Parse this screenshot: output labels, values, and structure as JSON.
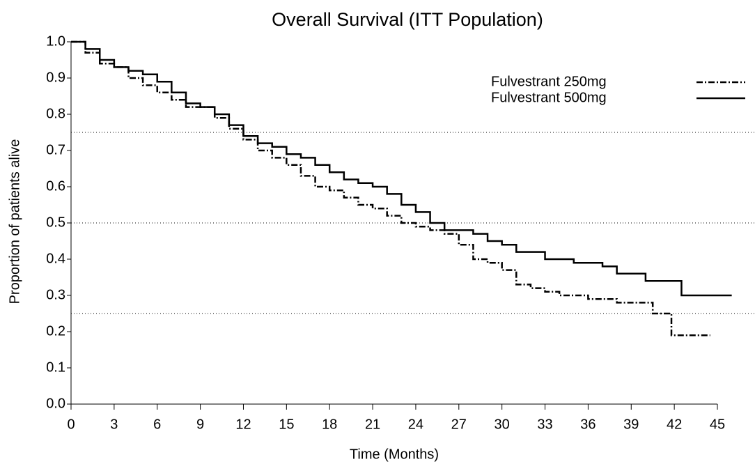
{
  "chart_data": {
    "type": "step",
    "title": "Overall Survival (ITT Population)",
    "x_label": "Time (Months)",
    "y_label": "Proportion of patients alive",
    "xlim": [
      0,
      45
    ],
    "ylim": [
      0,
      1
    ],
    "xticks": [
      0,
      3,
      6,
      9,
      12,
      15,
      18,
      21,
      24,
      27,
      30,
      33,
      36,
      39,
      42,
      45
    ],
    "yticks": [
      {
        "value": 0,
        "label": "0.0"
      },
      0.1,
      0.2,
      0.3,
      0.4,
      0.5,
      0.6,
      0.7,
      0.8,
      0.9,
      {
        "value": 1,
        "label": "1.0"
      }
    ],
    "reference_lines": [
      0.75,
      0.5,
      0.25
    ],
    "legend": "top-right",
    "series": [
      {
        "name": "Fulvestrant 250mg",
        "color": "#000000",
        "dash": "dash-dot",
        "x": [
          0,
          1,
          2,
          3,
          4,
          5,
          6,
          7,
          8,
          9,
          10,
          11,
          12,
          13,
          14,
          15,
          16,
          17,
          18,
          19,
          20,
          21,
          22,
          23,
          24,
          25,
          26,
          27,
          28,
          29,
          30,
          31,
          32,
          33,
          34,
          35,
          36,
          37,
          38,
          39,
          40,
          40.5,
          41,
          41.8,
          44.5
        ],
        "values": [
          1.0,
          0.97,
          0.94,
          0.93,
          0.9,
          0.88,
          0.86,
          0.84,
          0.82,
          0.82,
          0.79,
          0.76,
          0.73,
          0.7,
          0.68,
          0.66,
          0.63,
          0.6,
          0.59,
          0.57,
          0.55,
          0.54,
          0.52,
          0.5,
          0.49,
          0.48,
          0.47,
          0.44,
          0.4,
          0.39,
          0.37,
          0.33,
          0.32,
          0.31,
          0.3,
          0.3,
          0.29,
          0.29,
          0.28,
          0.28,
          0.28,
          0.25,
          0.25,
          0.19,
          0.19
        ]
      },
      {
        "name": "Fulvestrant 500mg",
        "color": "#000000",
        "dash": "solid",
        "x": [
          0,
          1,
          2,
          3,
          4,
          5,
          6,
          7,
          8,
          9,
          10,
          11,
          12,
          13,
          14,
          15,
          16,
          17,
          18,
          19,
          20,
          21,
          22,
          23,
          24,
          25,
          26,
          27,
          28,
          29,
          30,
          31,
          32,
          33,
          34,
          35,
          36,
          37,
          38,
          39,
          40,
          41,
          42,
          42.5,
          46
        ],
        "values": [
          1.0,
          0.98,
          0.95,
          0.93,
          0.92,
          0.91,
          0.89,
          0.86,
          0.83,
          0.82,
          0.8,
          0.77,
          0.74,
          0.72,
          0.71,
          0.69,
          0.68,
          0.66,
          0.64,
          0.62,
          0.61,
          0.6,
          0.58,
          0.55,
          0.53,
          0.5,
          0.48,
          0.48,
          0.47,
          0.45,
          0.44,
          0.42,
          0.42,
          0.4,
          0.4,
          0.39,
          0.39,
          0.38,
          0.36,
          0.36,
          0.34,
          0.34,
          0.34,
          0.3,
          0.3
        ]
      }
    ]
  }
}
